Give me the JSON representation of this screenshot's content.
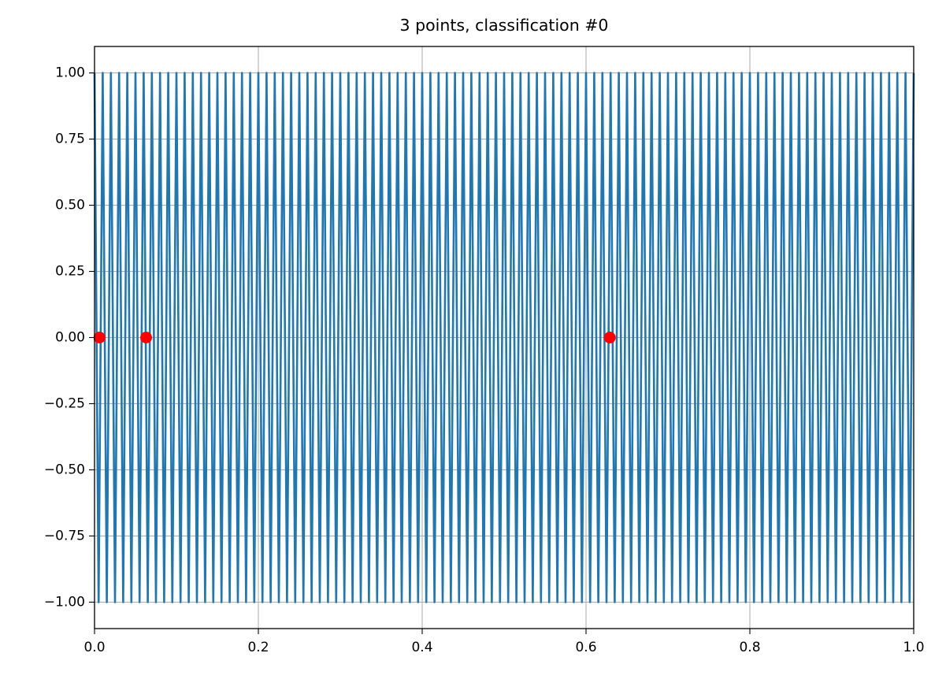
{
  "chart_data": {
    "type": "line",
    "title": "3 points, classification #0",
    "xlim": [
      0,
      1
    ],
    "ylim": [
      -1.1,
      1.1
    ],
    "xticks": [
      {
        "value": 0,
        "label": "0.0"
      },
      0.2,
      0.4,
      0.6,
      0.8,
      {
        "value": 1,
        "label": "1.0"
      }
    ],
    "yticks": [
      {
        "value": -1,
        "label": "−1.00"
      },
      {
        "value": -0.75,
        "label": "−0.75"
      },
      {
        "value": -0.5,
        "label": "−0.50"
      },
      {
        "value": -0.25,
        "label": "−0.25"
      },
      {
        "value": 0,
        "label": "0.00"
      },
      {
        "value": 0.25,
        "label": "0.25"
      },
      {
        "value": 0.5,
        "label": "0.50"
      },
      {
        "value": 0.75,
        "label": "0.75"
      },
      {
        "value": 1,
        "label": "1.00"
      }
    ],
    "grid": true,
    "series": [
      {
        "style": "line",
        "color": "#1f77b4",
        "x": [
          0,
          0.005,
          0.01,
          0.015,
          0.02,
          0.025,
          0.03,
          0.035,
          0.04,
          0.045,
          0.05,
          0.055,
          0.06,
          0.065,
          0.07,
          0.075,
          0.08,
          0.085,
          0.09,
          0.095,
          0.1,
          0.105,
          0.11,
          0.115,
          0.12,
          0.125,
          0.13,
          0.135,
          0.14,
          0.145,
          0.15,
          0.155,
          0.16,
          0.165,
          0.17,
          0.175,
          0.18,
          0.185,
          0.19,
          0.195,
          0.2,
          0.205,
          0.21,
          0.215,
          0.22,
          0.225,
          0.23,
          0.235,
          0.24,
          0.245,
          0.25,
          0.255,
          0.26,
          0.265,
          0.27,
          0.275,
          0.28,
          0.285,
          0.29,
          0.295,
          0.3,
          0.305,
          0.31,
          0.315,
          0.32,
          0.325,
          0.33,
          0.335,
          0.34,
          0.345,
          0.35,
          0.355,
          0.36,
          0.365,
          0.37,
          0.375,
          0.38,
          0.385,
          0.39,
          0.395,
          0.4,
          0.405,
          0.41,
          0.415,
          0.42,
          0.425,
          0.43,
          0.435,
          0.44,
          0.445,
          0.45,
          0.455,
          0.46,
          0.465,
          0.47,
          0.475,
          0.48,
          0.485,
          0.49,
          0.495,
          0.5,
          0.505,
          0.51,
          0.515,
          0.52,
          0.525,
          0.53,
          0.535,
          0.54,
          0.545,
          0.55,
          0.555,
          0.56,
          0.565,
          0.57,
          0.575,
          0.58,
          0.585,
          0.59,
          0.595,
          0.6,
          0.605,
          0.61,
          0.615,
          0.62,
          0.625,
          0.63,
          0.635,
          0.64,
          0.645,
          0.65,
          0.655,
          0.66,
          0.665,
          0.67,
          0.675,
          0.68,
          0.685,
          0.69,
          0.695,
          0.7,
          0.705,
          0.71,
          0.715,
          0.72,
          0.725,
          0.73,
          0.735,
          0.74,
          0.745,
          0.75,
          0.755,
          0.76,
          0.765,
          0.77,
          0.775,
          0.78,
          0.785,
          0.79,
          0.795,
          0.8,
          0.805,
          0.81,
          0.815,
          0.82,
          0.825,
          0.83,
          0.835,
          0.84,
          0.845,
          0.85,
          0.855,
          0.86,
          0.865,
          0.87,
          0.875,
          0.88,
          0.885,
          0.89,
          0.895,
          0.9,
          0.905,
          0.91,
          0.915,
          0.92,
          0.925,
          0.93,
          0.935,
          0.94,
          0.945,
          0.95,
          0.955,
          0.96,
          0.965,
          0.97,
          0.975,
          0.98,
          0.985,
          0.99,
          0.995,
          1
        ],
        "values": [
          1,
          -1,
          1,
          -1,
          1,
          -1,
          1,
          -1,
          1,
          -1,
          1,
          -1,
          1,
          -1,
          1,
          -1,
          1,
          -1,
          1,
          -1,
          1,
          -1,
          1,
          -1,
          1,
          -1,
          1,
          -1,
          1,
          -1,
          1,
          -1,
          1,
          -1,
          1,
          -1,
          1,
          -1,
          1,
          -1,
          1,
          -1,
          1,
          -1,
          1,
          -1,
          1,
          -1,
          1,
          -1,
          1,
          -1,
          1,
          -1,
          1,
          -1,
          1,
          -1,
          1,
          -1,
          1,
          -1,
          1,
          -1,
          1,
          -1,
          1,
          -1,
          1,
          -1,
          1,
          -1,
          1,
          -1,
          1,
          -1,
          1,
          -1,
          1,
          -1,
          1,
          -1,
          1,
          -1,
          1,
          -1,
          1,
          -1,
          1,
          -1,
          1,
          -1,
          1,
          -1,
          1,
          -1,
          1,
          -1,
          1,
          -1,
          1,
          -1,
          1,
          -1,
          1,
          -1,
          1,
          -1,
          1,
          -1,
          1,
          -1,
          1,
          -1,
          1,
          -1,
          1,
          -1,
          1,
          -1,
          1,
          -1,
          1,
          -1,
          1,
          -1,
          1,
          -1,
          1,
          -1,
          1,
          -1,
          1,
          -1,
          1,
          -1,
          1,
          -1,
          1,
          -1,
          1,
          -1,
          1,
          -1,
          1,
          -1,
          1,
          -1,
          1,
          -1,
          1,
          -1,
          1,
          -1,
          1,
          -1,
          1,
          -1,
          1,
          -1,
          1,
          -1,
          1,
          -1,
          1,
          -1,
          1,
          -1,
          1,
          -1,
          1,
          -1,
          1,
          -1,
          1,
          -1,
          1,
          -1,
          1,
          -1,
          1,
          -1,
          1,
          -1,
          1,
          -1,
          1,
          -1,
          1,
          -1,
          1,
          -1,
          1,
          -1,
          1,
          -1,
          1,
          -1,
          1,
          -1,
          1
        ]
      },
      {
        "style": "points",
        "color": "#ff0000",
        "x": [
          0.006,
          0.063,
          0.629
        ],
        "values": [
          0,
          0,
          0
        ]
      }
    ]
  }
}
